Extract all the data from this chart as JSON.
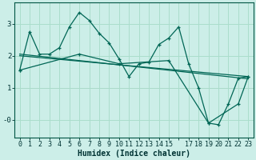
{
  "background_color": "#cceee8",
  "grid_color": "#aaddcc",
  "line_color": "#006655",
  "red_line_color": "#cc6666",
  "xlabel": "Humidex (Indice chaleur)",
  "xlabel_fontsize": 7,
  "tick_fontsize": 6,
  "xtick_labels": [
    "0",
    "1",
    "2",
    "3",
    "4",
    "5",
    "6",
    "7",
    "8",
    "9",
    "10",
    "11",
    "12",
    "13",
    "14",
    "15",
    "",
    "17",
    "18",
    "19",
    "20",
    "21",
    "22",
    "23"
  ],
  "ytick_vals": [
    0,
    1,
    2,
    3
  ],
  "ytick_labels": [
    "-0",
    "1",
    "2",
    "3"
  ],
  "ylim": [
    -0.55,
    3.65
  ],
  "xlim": [
    -0.5,
    23.5
  ],
  "series1": {
    "x": [
      0,
      1,
      2,
      3,
      4,
      5,
      6,
      7,
      8,
      9,
      10,
      11,
      12,
      13,
      14,
      15,
      16,
      17,
      18,
      19,
      20,
      21,
      22,
      23
    ],
    "y": [
      1.55,
      2.75,
      2.05,
      2.05,
      2.25,
      2.9,
      3.35,
      3.1,
      2.7,
      2.4,
      1.9,
      1.35,
      1.75,
      1.8,
      2.35,
      2.55,
      2.9,
      1.75,
      1.0,
      -0.1,
      -0.15,
      0.5,
      1.3,
      1.35
    ]
  },
  "series2": {
    "x": [
      0,
      6,
      10,
      15,
      19,
      22,
      23
    ],
    "y": [
      1.55,
      2.05,
      1.75,
      1.85,
      -0.1,
      0.5,
      1.35
    ]
  },
  "series3": {
    "x": [
      0,
      23
    ],
    "y": [
      2.0,
      1.35
    ]
  },
  "series4": {
    "x": [
      0,
      23
    ],
    "y": [
      2.05,
      1.28
    ]
  }
}
